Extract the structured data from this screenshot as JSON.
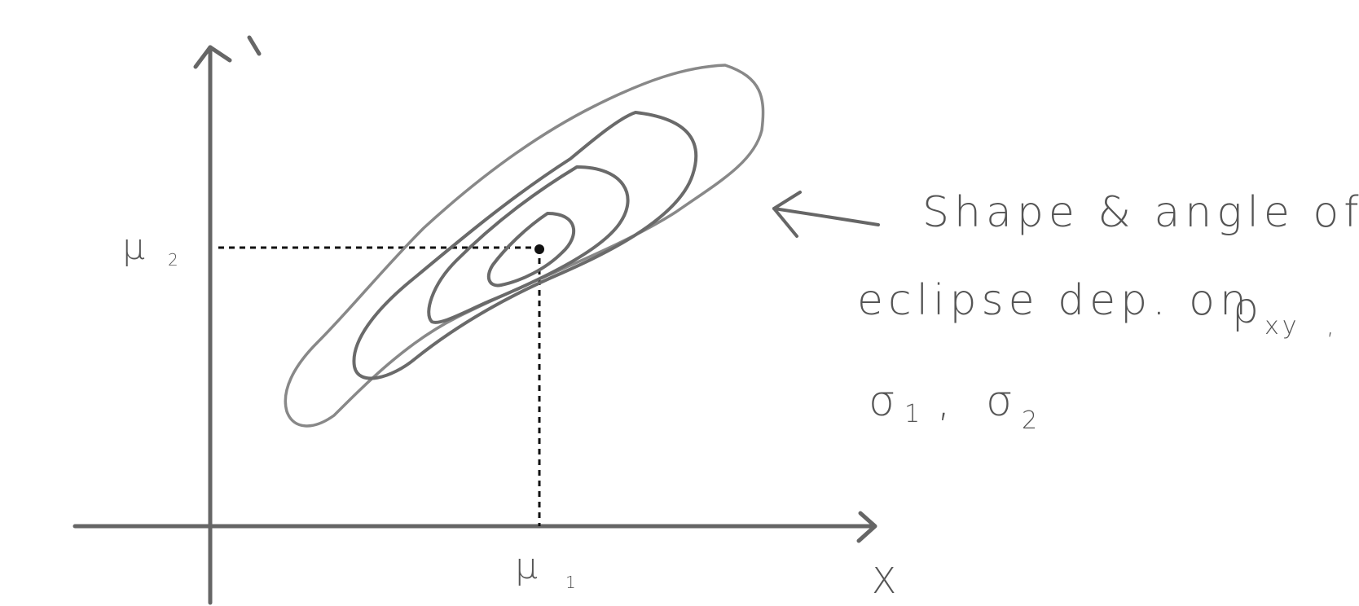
{
  "diagram": {
    "axis_labels": {
      "x": "X",
      "mu1_symbol": "μ",
      "mu1_sub": "1",
      "mu2_symbol": "μ",
      "mu2_sub": "2"
    },
    "annotation": {
      "line1": "Shape & angle of",
      "line2_text": "eclipse dep. on",
      "rho_symbol": "ρ",
      "rho_sub": "xy",
      "rho_trailing": ",",
      "sigma1_symbol": "σ",
      "sigma1_sub": "1",
      "separator": ",",
      "sigma2_symbol": "σ",
      "sigma2_sub": "2"
    }
  }
}
